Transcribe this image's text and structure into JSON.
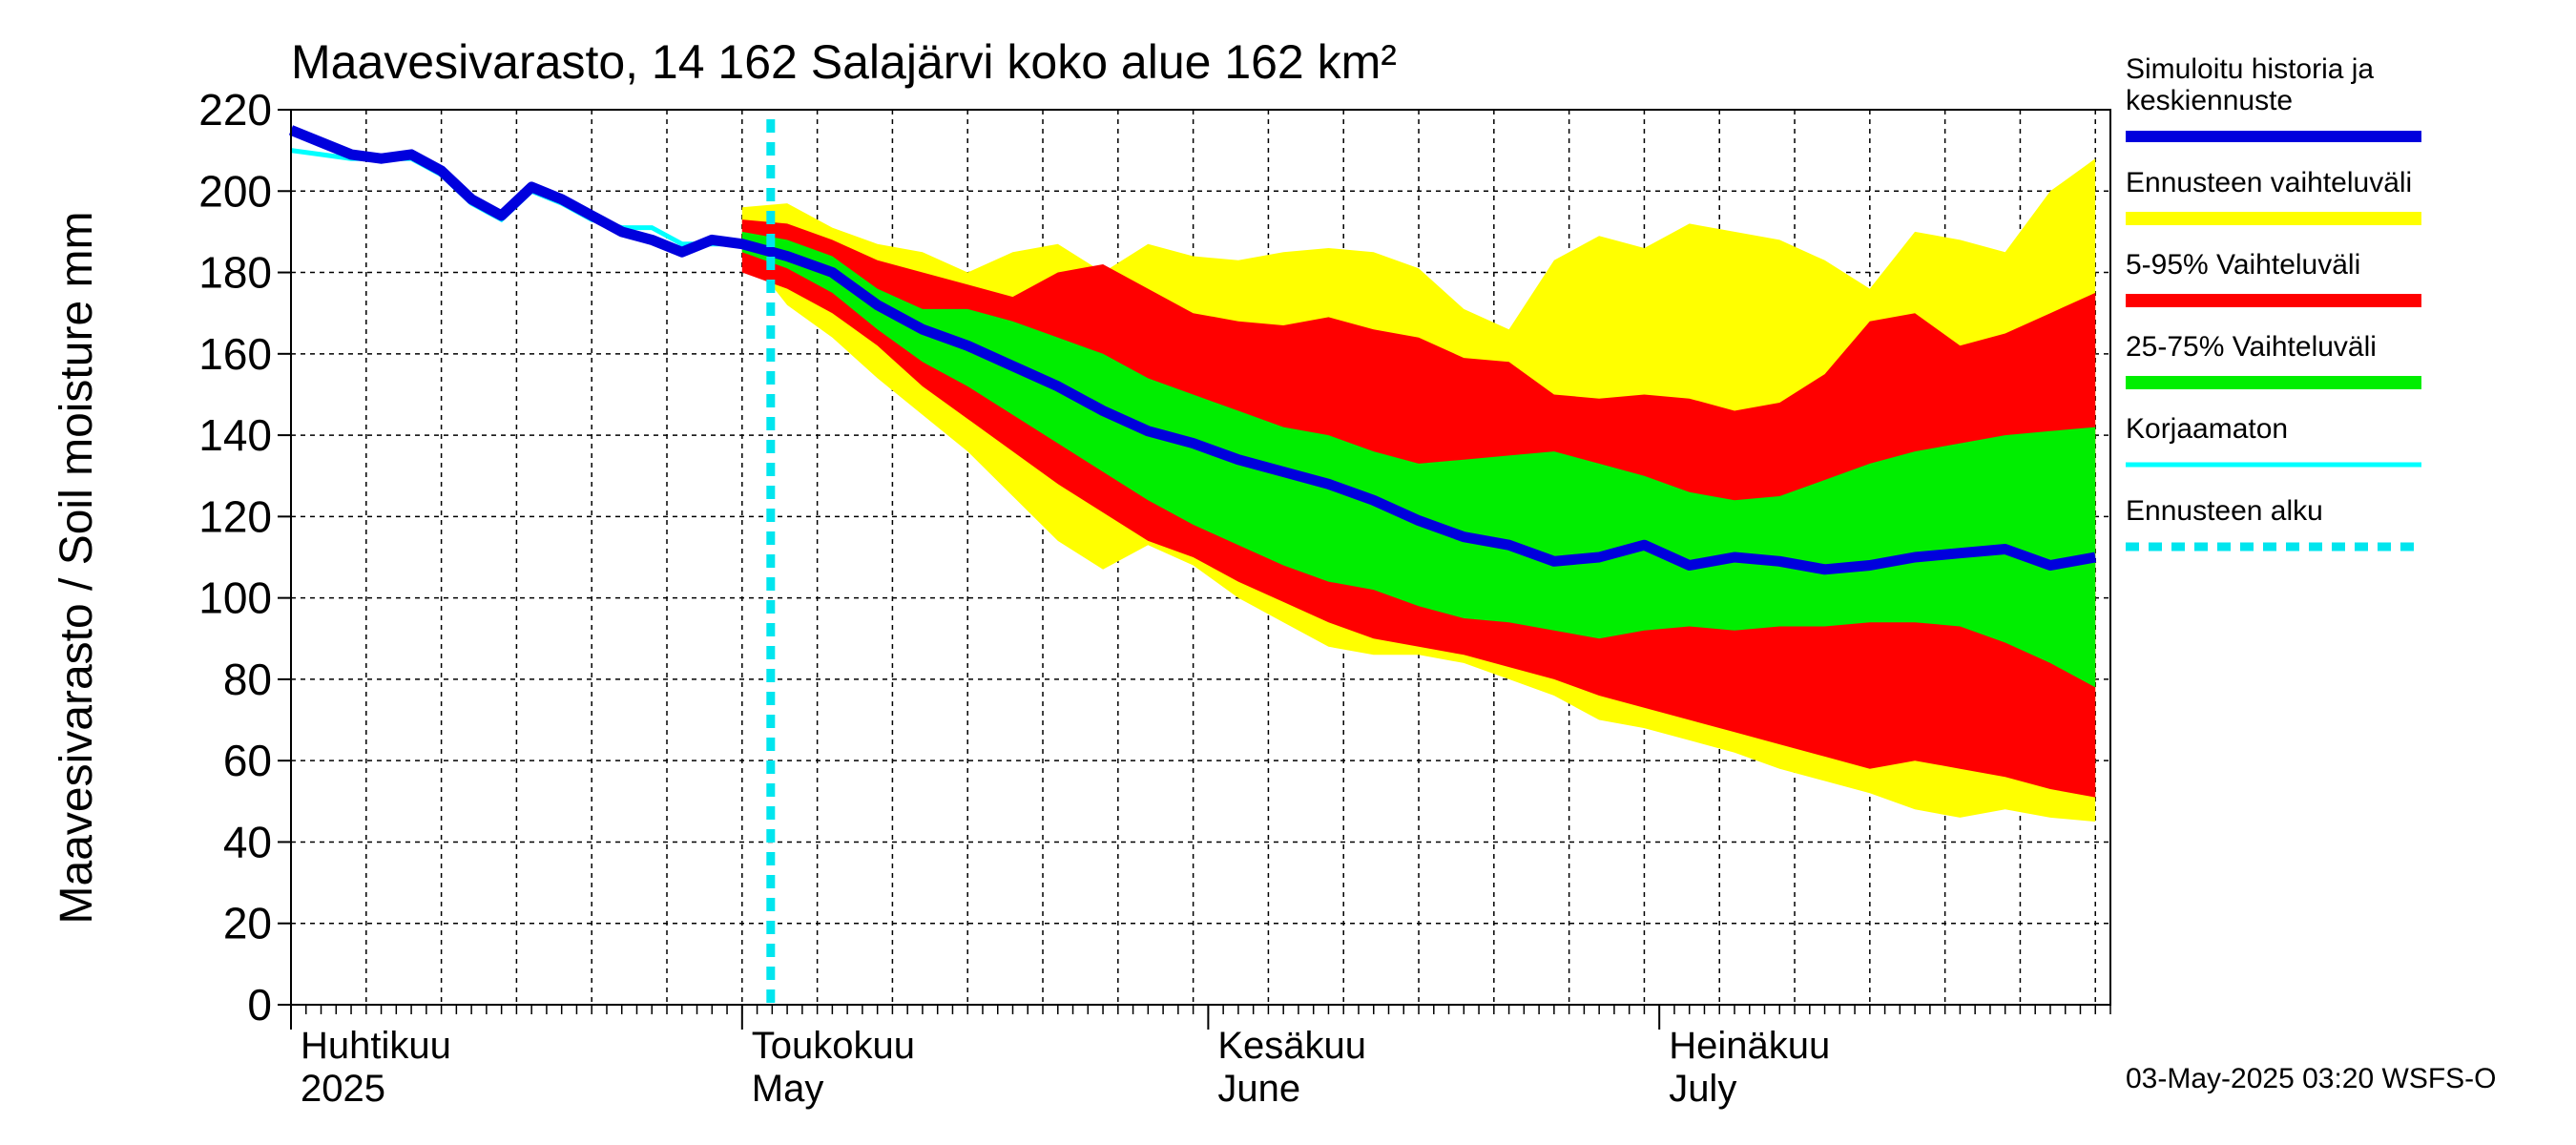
{
  "title": "Maavesivarasto, 14 162 Salajärvi koko alue 162 km²",
  "footer": "03-May-2025 03:20 WSFS-O",
  "chart_data": {
    "type": "area",
    "title": "Maavesivarasto, 14 162 Salajärvi koko alue 162 km²",
    "ylabel": "Maavesivarasto / Soil moisture   mm",
    "xlabel": "",
    "ylim": [
      0,
      220
    ],
    "yticks": [
      0,
      20,
      40,
      60,
      80,
      100,
      120,
      140,
      160,
      180,
      200,
      220
    ],
    "xlim": [
      "2025-04-01",
      "2025-07-31"
    ],
    "grid": true,
    "legend_position": "right",
    "forecast_start": "2025-05-01",
    "month_labels": [
      {
        "date": "2025-04-01",
        "fi": "Huhtikuu",
        "en": "2025"
      },
      {
        "date": "2025-05-01",
        "fi": "Toukokuu",
        "en": "May"
      },
      {
        "date": "2025-06-01",
        "fi": "Kesäkuu",
        "en": "June"
      },
      {
        "date": "2025-07-01",
        "fi": "Heinäkuu",
        "en": "July"
      }
    ],
    "legend": [
      {
        "label": "Simuloitu historia ja keskiennuste",
        "lines": [
          "Simuloitu historia ja",
          "keskiennuste"
        ],
        "color": "#0000dd",
        "style": "thick"
      },
      {
        "label": "Ennusteen vaihteluväli",
        "lines": [
          "Ennusteen vaihteluväli"
        ],
        "color": "#ffff00",
        "style": "band"
      },
      {
        "label": "5-95% Vaihteluväli",
        "lines": [
          "5-95% Vaihteluväli"
        ],
        "color": "#ff0000",
        "style": "band"
      },
      {
        "label": "25-75% Vaihteluväli",
        "lines": [
          "25-75% Vaihteluväli"
        ],
        "color": "#00ee00",
        "style": "band"
      },
      {
        "label": "Korjaamaton",
        "lines": [
          "Korjaamaton"
        ],
        "color": "#00ffff",
        "style": "thin"
      },
      {
        "label": "Ennusteen alku",
        "lines": [
          "Ennusteen alku"
        ],
        "color": "#00e5ee",
        "style": "dashed"
      }
    ],
    "history_x": [
      "2025-04-01",
      "2025-04-03",
      "2025-04-05",
      "2025-04-07",
      "2025-04-09",
      "2025-04-11",
      "2025-04-13",
      "2025-04-15",
      "2025-04-17",
      "2025-04-19",
      "2025-04-21",
      "2025-04-23",
      "2025-04-25",
      "2025-04-27",
      "2025-04-29",
      "2025-05-01"
    ],
    "history_y": [
      215,
      212,
      209,
      208,
      209,
      205,
      198,
      194,
      201,
      198,
      194,
      190,
      188,
      185,
      188,
      187
    ],
    "uncorrected_y": [
      210,
      209,
      208,
      208,
      208,
      204,
      197,
      193,
      200,
      197,
      193,
      191,
      191,
      187,
      187,
      187
    ],
    "forecast_x": [
      "2025-05-01",
      "2025-05-04",
      "2025-05-07",
      "2025-05-10",
      "2025-05-13",
      "2025-05-16",
      "2025-05-19",
      "2025-05-22",
      "2025-05-25",
      "2025-05-28",
      "2025-05-31",
      "2025-06-03",
      "2025-06-06",
      "2025-06-09",
      "2025-06-12",
      "2025-06-15",
      "2025-06-18",
      "2025-06-21",
      "2025-06-24",
      "2025-06-27",
      "2025-06-30",
      "2025-07-03",
      "2025-07-06",
      "2025-07-09",
      "2025-07-12",
      "2025-07-15",
      "2025-07-18",
      "2025-07-21",
      "2025-07-24",
      "2025-07-27",
      "2025-07-30"
    ],
    "median": [
      187,
      184,
      180,
      172,
      166,
      162,
      157,
      152,
      146,
      141,
      138,
      134,
      131,
      128,
      124,
      119,
      115,
      113,
      109,
      110,
      113,
      108,
      110,
      109,
      107,
      108,
      110,
      111,
      112,
      108,
      110
    ],
    "p25": [
      185,
      181,
      175,
      166,
      158,
      152,
      145,
      138,
      131,
      124,
      118,
      113,
      108,
      104,
      102,
      98,
      95,
      94,
      92,
      90,
      92,
      93,
      92,
      93,
      93,
      94,
      94,
      93,
      89,
      84,
      78
    ],
    "p75": [
      190,
      188,
      184,
      176,
      171,
      171,
      168,
      164,
      160,
      154,
      150,
      146,
      142,
      140,
      136,
      133,
      134,
      135,
      136,
      133,
      130,
      126,
      124,
      125,
      129,
      133,
      136,
      138,
      140,
      141,
      142
    ],
    "p5": [
      180,
      176,
      170,
      162,
      152,
      144,
      136,
      128,
      121,
      114,
      110,
      104,
      99,
      94,
      90,
      88,
      86,
      83,
      80,
      76,
      73,
      70,
      67,
      64,
      61,
      58,
      60,
      58,
      56,
      53,
      51
    ],
    "p95": [
      193,
      192,
      188,
      183,
      180,
      177,
      174,
      180,
      182,
      176,
      170,
      168,
      167,
      169,
      166,
      164,
      159,
      158,
      150,
      149,
      150,
      149,
      146,
      148,
      155,
      168,
      170,
      162,
      165,
      170,
      175
    ],
    "min": [
      186,
      172,
      164,
      154,
      145,
      136,
      125,
      114,
      107,
      113,
      108,
      100,
      94,
      88,
      86,
      86,
      84,
      80,
      76,
      70,
      68,
      65,
      62,
      58,
      55,
      52,
      48,
      46,
      48,
      46,
      45
    ],
    "max": [
      196,
      197,
      191,
      187,
      185,
      180,
      185,
      187,
      180,
      187,
      184,
      183,
      185,
      186,
      185,
      181,
      171,
      166,
      183,
      189,
      186,
      192,
      190,
      188,
      183,
      176,
      190,
      188,
      185,
      200,
      208
    ]
  }
}
